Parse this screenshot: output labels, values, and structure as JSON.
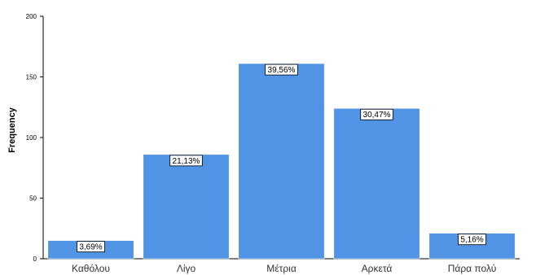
{
  "chart_data": {
    "type": "bar",
    "title": "",
    "xlabel": "",
    "ylabel": "Frequency",
    "ylim": [
      0,
      200
    ],
    "yticks": [
      0,
      50,
      100,
      150,
      200
    ],
    "grid": false,
    "categories": [
      "Καθόλου",
      "Λίγο",
      "Μέτρια",
      "Αρκετά",
      "Πάρα πολύ"
    ],
    "values": [
      15,
      86,
      161,
      124,
      21
    ],
    "data_labels": [
      "3,69%",
      "21,13%",
      "39,56%",
      "30,47%",
      "5,16%"
    ],
    "bar_color": "#5193e5",
    "bar_edge_color": "#ffffff"
  }
}
